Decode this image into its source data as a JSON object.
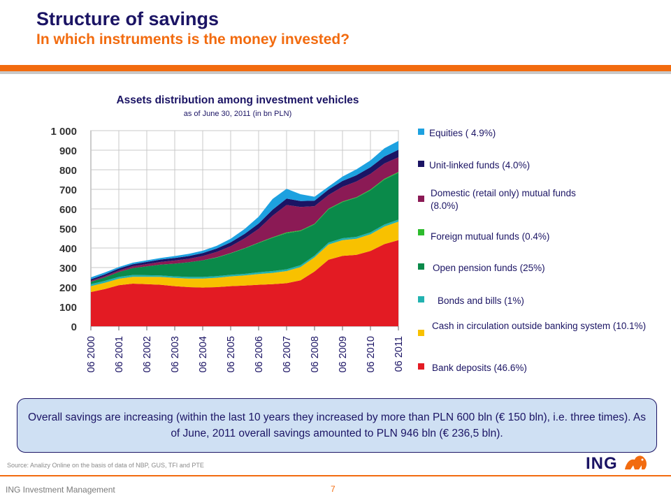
{
  "header": {
    "title": "Structure of savings",
    "subtitle": "In which instruments is the money invested?"
  },
  "chart_data": {
    "type": "area",
    "stacked": true,
    "title": "Assets distribution among investment vehicles",
    "subtitle": "as of June 30, 2011 (in bn PLN)",
    "ylim": [
      0,
      1000
    ],
    "yticks": [
      0,
      100,
      200,
      300,
      400,
      500,
      600,
      700,
      800,
      900,
      1000
    ],
    "ytick_labels": [
      "0",
      "100",
      "200",
      "300",
      "400",
      "500",
      "600",
      "700",
      "800",
      "900",
      "1 000"
    ],
    "x_tick_labels": [
      "06 2000",
      "06 2001",
      "06 2002",
      "06 2003",
      "06 2004",
      "06 2005",
      "06 2006",
      "06 2007",
      "06 2008",
      "06 2009",
      "06 2010",
      "06 2011"
    ],
    "grid": true,
    "legend_position": "right",
    "x": [
      2000.5,
      2001.0,
      2001.5,
      2002.0,
      2002.5,
      2003.0,
      2003.5,
      2004.0,
      2004.5,
      2005.0,
      2005.5,
      2006.0,
      2006.5,
      2007.0,
      2007.5,
      2008.0,
      2008.5,
      2009.0,
      2009.5,
      2010.0,
      2010.5,
      2011.0,
      2011.5
    ],
    "series": [
      {
        "name": "Bank deposits (46.6%)",
        "color": "#e31b23",
        "values": [
          175,
          190,
          210,
          218,
          215,
          212,
          205,
          200,
          198,
          200,
          205,
          208,
          212,
          215,
          220,
          235,
          280,
          340,
          360,
          365,
          385,
          420,
          440
        ]
      },
      {
        "name": "Cash in circulation outside banking system (10.1%)",
        "color": "#f8c100",
        "values": [
          30,
          32,
          33,
          35,
          38,
          40,
          42,
          44,
          46,
          48,
          50,
          52,
          55,
          58,
          62,
          68,
          72,
          78,
          80,
          82,
          85,
          90,
          95
        ]
      },
      {
        "name": "Bonds and bills (1%)",
        "color": "#22b2b0",
        "values": [
          10,
          10,
          9,
          9,
          8,
          8,
          8,
          8,
          8,
          8,
          8,
          8,
          9,
          9,
          9,
          9,
          9,
          10,
          10,
          10,
          10,
          10,
          10
        ]
      },
      {
        "name": "Open pension funds (25%)",
        "color": "#0a8a4a",
        "values": [
          12,
          18,
          25,
          35,
          45,
          55,
          65,
          75,
          85,
          95,
          110,
          130,
          150,
          170,
          185,
          175,
          160,
          170,
          185,
          200,
          215,
          230,
          240
        ]
      },
      {
        "name": "Foreign mutual funds (0.4%)",
        "color": "#2dbb2d",
        "values": [
          0,
          0,
          0,
          0,
          0,
          0,
          0,
          0,
          0,
          1,
          1,
          1,
          2,
          3,
          4,
          3,
          3,
          3,
          3,
          3,
          4,
          4,
          4
        ]
      },
      {
        "name": "Domestic (retail only) mutual funds (8.0%)",
        "color": "#8b1a55",
        "values": [
          5,
          6,
          8,
          10,
          12,
          14,
          16,
          18,
          22,
          28,
          35,
          50,
          70,
          110,
          140,
          120,
          90,
          70,
          75,
          80,
          80,
          78,
          75
        ]
      },
      {
        "name": "Unit-linked funds (4.0%)",
        "color": "#1b1464",
        "values": [
          8,
          9,
          10,
          10,
          11,
          12,
          13,
          14,
          15,
          17,
          20,
          23,
          27,
          31,
          33,
          30,
          28,
          28,
          30,
          32,
          34,
          36,
          38
        ]
      },
      {
        "name": "Equities ( 4.9%)",
        "color": "#1da1e0",
        "values": [
          10,
          10,
          8,
          8,
          8,
          8,
          10,
          11,
          12,
          14,
          18,
          25,
          35,
          55,
          50,
          35,
          20,
          15,
          22,
          30,
          35,
          42,
          45
        ]
      }
    ]
  },
  "legend_display": [
    {
      "label": "Equities ( 4.9%)",
      "color": "#1da1e0"
    },
    {
      "label": "Unit-linked funds (4.0%)",
      "color": "#1b1464"
    },
    {
      "label": "Domestic (retail only) mutual funds (8.0%)",
      "color": "#8b1a55"
    },
    {
      "label": "Foreign mutual funds (0.4%)",
      "color": "#2dbb2d"
    },
    {
      "label": "Open pension funds (25%)",
      "color": "#0a8a4a"
    },
    {
      "label": "Bonds and bills (1%)",
      "color": "#22b2b0"
    },
    {
      "label": "Cash in circulation outside banking system (10.1%)",
      "color": "#f8c100"
    },
    {
      "label": "Bank deposits (46.6%)",
      "color": "#e31b23"
    }
  ],
  "callout": {
    "text": "Overall savings are increasing (within the last 10 years they increased by more than PLN 600 bln (€ 150 bln), i.e. three times). As of June, 2011 overall savings amounted to PLN 946 bln (€ 236,5 bln)."
  },
  "footer": {
    "source": "Source: Analizy Online on the basis of data of NBP, GUS, TFI and PTE",
    "company": "ING Investment Management",
    "page": "7",
    "logo_text": "ING"
  }
}
